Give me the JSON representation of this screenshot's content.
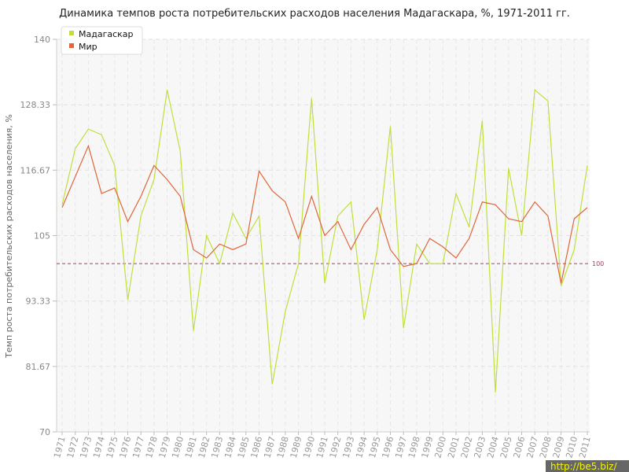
{
  "chart_data": {
    "type": "line",
    "title": "Динамика темпов роста потребительских расходов населения Мадагаскара, %, 1971-2011 гг.",
    "xlabel": "",
    "ylabel": "Темп роста потребительских расходов населения, %",
    "ylim": [
      70,
      140
    ],
    "yticks": [
      "70",
      "81.67",
      "93.33",
      "105",
      "116.67",
      "128.33",
      "140"
    ],
    "ytick_values": [
      70,
      81.67,
      93.33,
      105,
      116.67,
      128.33,
      140
    ],
    "x": [
      "1971",
      "1972",
      "1973",
      "1974",
      "1975",
      "1976",
      "1977",
      "1978",
      "1979",
      "1980",
      "1981",
      "1982",
      "1983",
      "1984",
      "1985",
      "1986",
      "1987",
      "1988",
      "1989",
      "1990",
      "1991",
      "1992",
      "1993",
      "1994",
      "1995",
      "1996",
      "1997",
      "1998",
      "1999",
      "2000",
      "2001",
      "2002",
      "2003",
      "2004",
      "2005",
      "2006",
      "2007",
      "2008",
      "2009",
      "2010",
      "2011"
    ],
    "series": [
      {
        "name": "Мадагаскар",
        "color": "#bfe03c",
        "values": [
          110.5,
          120.5,
          124.0,
          123.0,
          117.5,
          93.5,
          108.5,
          115.0,
          131.0,
          120.0,
          88.0,
          105.0,
          100.0,
          109.0,
          104.5,
          108.5,
          78.5,
          91.5,
          100.0,
          129.5,
          96.5,
          108.5,
          111.0,
          90.0,
          102.5,
          124.5,
          88.5,
          103.5,
          100.0,
          100.0,
          112.5,
          106.5,
          125.5,
          77.0,
          117.0,
          105.0,
          131.0,
          129.0,
          96.0,
          102.5,
          117.5
        ]
      },
      {
        "name": "Мир",
        "color": "#e0663a",
        "values": [
          110.0,
          115.5,
          121.0,
          112.5,
          113.5,
          107.5,
          112.0,
          117.5,
          115.0,
          112.0,
          102.5,
          101.0,
          103.5,
          102.5,
          103.5,
          116.5,
          113.0,
          111.0,
          104.5,
          112.0,
          105.0,
          107.5,
          102.5,
          107.0,
          110.0,
          102.5,
          99.5,
          100.0,
          104.5,
          103.0,
          101.0,
          104.5,
          111.0,
          110.5,
          108.0,
          107.5,
          111.0,
          108.5,
          96.5,
          108.0,
          110.0
        ]
      }
    ],
    "reference_line": {
      "value": 100,
      "label": "100",
      "color": "#a04060"
    },
    "grid": true,
    "legend_position": "top-left"
  },
  "watermark": {
    "text": "http://be5.biz/"
  }
}
